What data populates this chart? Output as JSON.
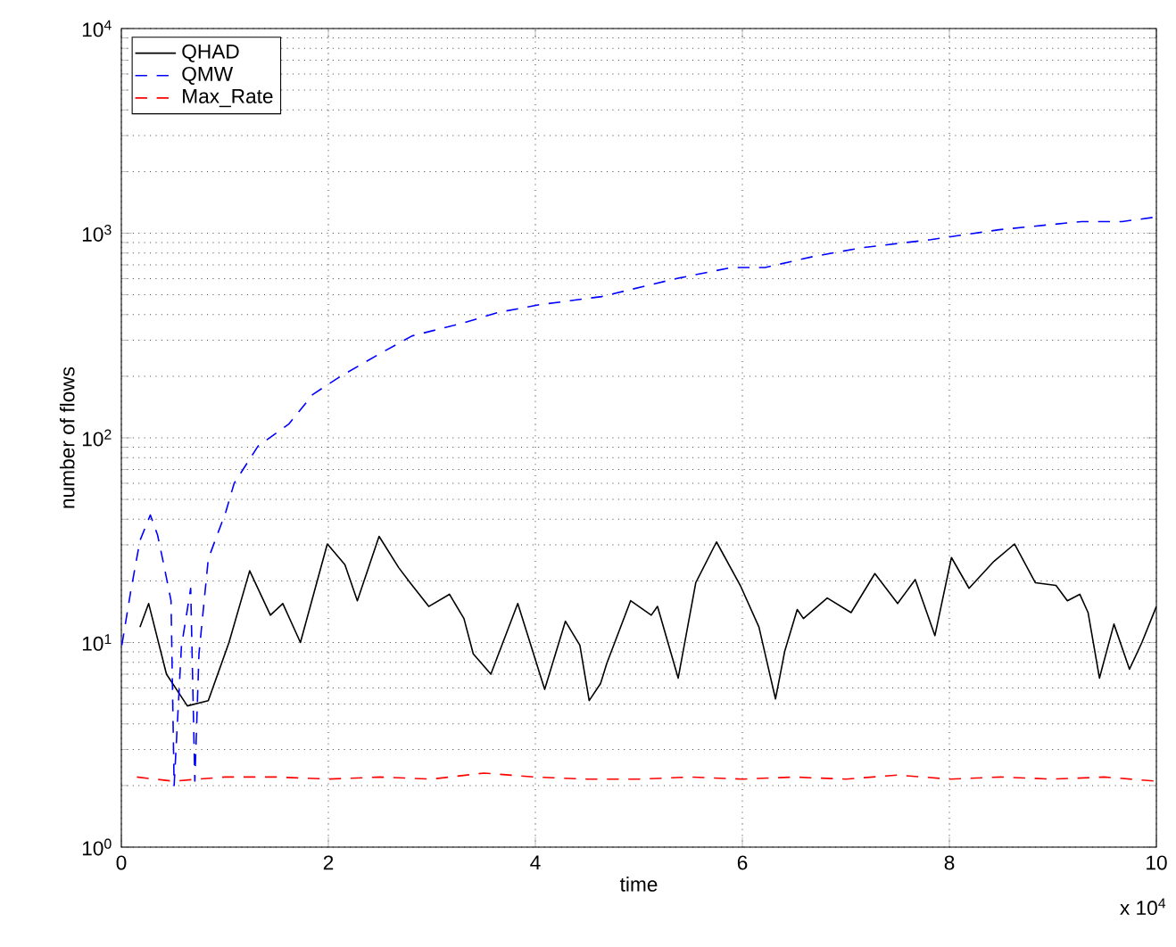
{
  "chart_data": {
    "type": "line",
    "xlabel": "time",
    "ylabel": "number of flows",
    "xlim": [
      0,
      10
    ],
    "ylim": [
      1,
      10000
    ],
    "log": "y",
    "grid": true,
    "legend": "top left",
    "xticks": [
      0,
      2,
      4,
      6,
      8,
      10
    ],
    "yticks": [
      {
        "value": 1,
        "label": "10$^{0}$"
      },
      {
        "value": 10,
        "label": "10$^{1}$"
      },
      {
        "value": 100,
        "label": "10$^{2}$"
      },
      {
        "value": 1000,
        "label": "10$^{3}$"
      },
      {
        "value": 10000,
        "label": "10$^{4}$"
      }
    ],
    "annotations": [
      "x 10$^{4}$"
    ],
    "series": [
      {
        "name": "QHAD",
        "color": "#000000",
        "line_style": "solid",
        "x": [
          0.18,
          0.264,
          0.436,
          0.638,
          0.84,
          1.04,
          1.24,
          1.44,
          1.56,
          1.73,
          1.99,
          2.16,
          2.28,
          2.49,
          2.68,
          2.79,
          2.97,
          3.17,
          3.31,
          3.4,
          3.57,
          3.83,
          4.09,
          4.29,
          4.43,
          4.52,
          4.63,
          4.69,
          4.92,
          5.12,
          5.18,
          5.38,
          5.55,
          5.75,
          5.98,
          6.16,
          6.32,
          6.41,
          6.53,
          6.59,
          6.82,
          7.05,
          7.28,
          7.5,
          7.67,
          7.86,
          8.02,
          8.19,
          8.43,
          8.63,
          8.83,
          9.03,
          9.14,
          9.26,
          9.34,
          9.45,
          9.59,
          9.74,
          9.86,
          10
        ],
        "values": [
          11.9,
          15.5,
          7,
          4.9,
          5.2,
          10,
          22.4,
          13.6,
          15.5,
          10,
          30.3,
          24,
          16,
          33,
          23.2,
          19.6,
          15,
          17.2,
          13.1,
          8.8,
          7,
          15.5,
          5.9,
          12.7,
          9.7,
          5.2,
          6.3,
          7.9,
          16,
          13.6,
          15,
          6.7,
          19.6,
          31,
          19,
          11.9,
          5.3,
          9.1,
          14.5,
          13.1,
          16.5,
          14,
          21.7,
          15.5,
          20.3,
          10.8,
          26,
          18.4,
          24.9,
          30.3,
          19.6,
          19,
          16,
          17.2,
          14,
          6.7,
          12.3,
          7.4,
          10,
          15
        ]
      },
      {
        "name": "QMW",
        "color": "#0000ff",
        "line_style": "dashed",
        "x": [
          0.005,
          0.09,
          0.18,
          0.28,
          0.35,
          0.41,
          0.48,
          0.51,
          0.58,
          0.67,
          0.71,
          0.75,
          0.84,
          1.01,
          1.09,
          1.32,
          1.62,
          1.85,
          2.12,
          2.51,
          2.81,
          3.31,
          3.64,
          4.04,
          4.64,
          5.36,
          5.9,
          6.22,
          6.69,
          7.16,
          7.82,
          8.48,
          9.28,
          9.67,
          10
        ],
        "values": [
          9.7,
          17.7,
          31.5,
          42,
          33.5,
          24,
          16,
          2.0,
          9.5,
          18.4,
          2.1,
          8.8,
          25.6,
          43.6,
          60,
          91,
          117,
          163,
          200,
          260,
          315,
          365,
          410,
          447,
          490,
          600,
          680,
          680,
          770,
          850,
          930,
          1040,
          1140,
          1140,
          1200
        ]
      },
      {
        "name": "Max_Rate",
        "color": "#ff0000",
        "line_style": "dashed",
        "x": [
          0.15,
          0.5,
          1,
          1.5,
          2,
          2.5,
          3,
          3.5,
          4,
          4.5,
          5,
          5.5,
          6,
          6.5,
          7,
          7.5,
          8,
          8.5,
          9,
          9.5,
          10
        ],
        "values": [
          2.2,
          2.1,
          2.2,
          2.2,
          2.15,
          2.2,
          2.15,
          2.3,
          2.2,
          2.15,
          2.15,
          2.2,
          2.15,
          2.2,
          2.15,
          2.25,
          2.15,
          2.2,
          2.15,
          2.2,
          2.1
        ]
      }
    ]
  }
}
